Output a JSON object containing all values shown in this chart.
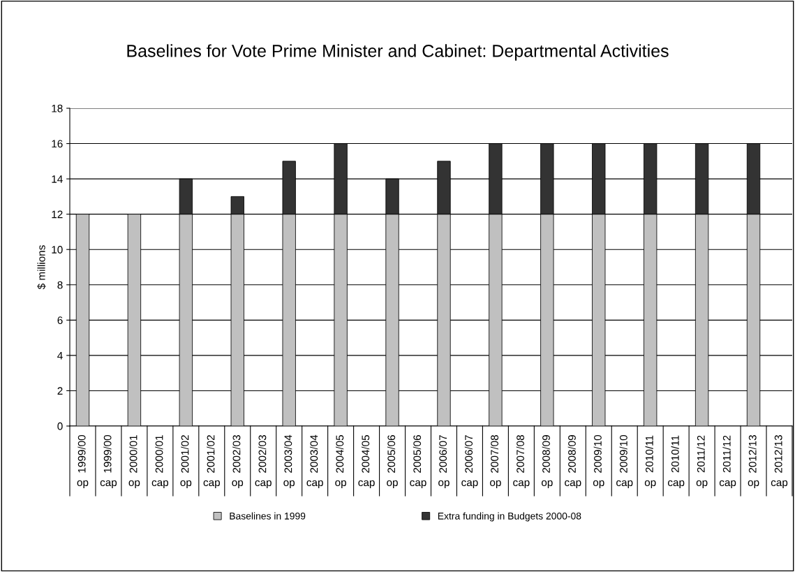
{
  "chart_data": {
    "type": "bar",
    "title": "Baselines for Vote Prime Minister and Cabinet: Departmental Activities",
    "ylabel": "$ millions",
    "categories": [
      "1999/00\nop",
      "1999/00\ncap",
      "2000/01\nop",
      "2000/01\ncap",
      "2001/02\nop",
      "2001/02\ncap",
      "2002/03\nop",
      "2002/03\ncap",
      "2003/04\nop",
      "2003/04\ncap",
      "2004/05\nop",
      "2004/05\ncap",
      "2005/06\nop",
      "2005/06\ncap",
      "2006/07\nop",
      "2006/07\ncap",
      "2007/08\nop",
      "2007/08\ncap",
      "2008/09\nop",
      "2008/09\ncap",
      "2009/10\nop",
      "2009/10\ncap",
      "2010/11\nop",
      "2010/11\ncap",
      "2011/12\nop",
      "2011/12\ncap",
      "2012/13\nop",
      "2012/13\ncap"
    ],
    "stacked": true,
    "series": [
      {
        "name": "Baselines in 1999",
        "color": "#c0c0c0",
        "values": [
          12,
          null,
          12,
          null,
          12,
          null,
          12,
          null,
          12,
          null,
          12,
          null,
          12,
          null,
          12,
          null,
          12,
          null,
          12,
          null,
          12,
          null,
          12,
          null,
          12,
          null,
          12,
          null
        ]
      },
      {
        "name": "Extra funding in Budgets 2000-08",
        "color": "#333333",
        "values": [
          null,
          null,
          null,
          null,
          2,
          null,
          1,
          null,
          3,
          null,
          4,
          null,
          2,
          null,
          3,
          null,
          4,
          null,
          4,
          null,
          4,
          null,
          4,
          null,
          4,
          null,
          4,
          null
        ]
      }
    ],
    "ylim": [
      0,
      18
    ],
    "yticks": [
      0,
      2,
      4,
      6,
      8,
      10,
      12,
      14,
      16,
      18
    ],
    "grid": "y",
    "legend": "bottom"
  }
}
